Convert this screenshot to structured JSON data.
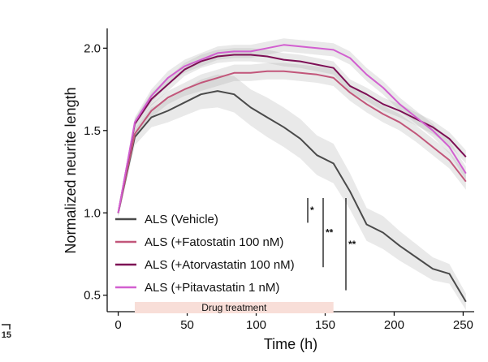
{
  "chart_data": {
    "type": "line",
    "xlabel": "Time (h)",
    "ylabel": "Normalized neurite length",
    "xlim": [
      -8,
      258
    ],
    "ylim": [
      0.4,
      2.12
    ],
    "xticks": [
      0,
      50,
      100,
      150,
      200,
      250
    ],
    "yticks": [
      0.5,
      1.0,
      1.5,
      2.0
    ],
    "xtick_labels": [
      "0",
      "50",
      "100",
      "150",
      "200",
      "250"
    ],
    "ytick_labels": [
      "0.5",
      "1.0",
      "1.5",
      "2.0"
    ],
    "x": [
      0,
      12,
      24,
      36,
      48,
      60,
      72,
      84,
      96,
      108,
      120,
      132,
      144,
      156,
      168,
      180,
      192,
      204,
      216,
      228,
      240,
      252
    ],
    "series": [
      {
        "name": "ALS (Vehicle)",
        "color": "#4a4a4a",
        "values": [
          1.0,
          1.46,
          1.58,
          1.62,
          1.67,
          1.72,
          1.74,
          1.72,
          1.64,
          1.58,
          1.52,
          1.45,
          1.35,
          1.3,
          1.13,
          0.93,
          0.88,
          0.8,
          0.73,
          0.66,
          0.63,
          0.46
        ],
        "band": [
          0.03,
          0.05,
          0.06,
          0.07,
          0.08,
          0.09,
          0.1,
          0.11,
          0.11,
          0.12,
          0.12,
          0.12,
          0.12,
          0.12,
          0.11,
          0.1,
          0.1,
          0.09,
          0.08,
          0.07,
          0.06,
          0.05
        ]
      },
      {
        "name": "ALS (+Fatostatin 100 nM)",
        "color": "#c2567a",
        "values": [
          1.0,
          1.48,
          1.62,
          1.7,
          1.75,
          1.79,
          1.82,
          1.85,
          1.85,
          1.86,
          1.86,
          1.85,
          1.84,
          1.82,
          1.73,
          1.66,
          1.6,
          1.55,
          1.48,
          1.4,
          1.32,
          1.19
        ],
        "band": [
          0.02,
          0.03,
          0.04,
          0.04,
          0.04,
          0.05,
          0.05,
          0.05,
          0.05,
          0.05,
          0.05,
          0.05,
          0.05,
          0.05,
          0.05,
          0.05,
          0.05,
          0.05,
          0.05,
          0.05,
          0.05,
          0.05
        ]
      },
      {
        "name": "ALS (+Atorvastatin 100 nM)",
        "color": "#7d0f55",
        "values": [
          1.0,
          1.54,
          1.69,
          1.78,
          1.87,
          1.92,
          1.95,
          1.96,
          1.96,
          1.95,
          1.93,
          1.92,
          1.9,
          1.88,
          1.77,
          1.72,
          1.66,
          1.62,
          1.57,
          1.52,
          1.45,
          1.34
        ],
        "band": [
          0.02,
          0.03,
          0.04,
          0.04,
          0.04,
          0.04,
          0.04,
          0.04,
          0.04,
          0.04,
          0.04,
          0.04,
          0.04,
          0.04,
          0.04,
          0.04,
          0.04,
          0.04,
          0.04,
          0.04,
          0.04,
          0.04
        ]
      },
      {
        "name": "ALS (+Pitavastatin 1 nM)",
        "color": "#d25fd0",
        "values": [
          1.0,
          1.55,
          1.71,
          1.82,
          1.89,
          1.93,
          1.97,
          1.98,
          1.98,
          2.0,
          2.02,
          2.01,
          2.0,
          1.99,
          1.94,
          1.84,
          1.76,
          1.66,
          1.58,
          1.5,
          1.4,
          1.24
        ],
        "band": [
          0.02,
          0.03,
          0.04,
          0.04,
          0.04,
          0.04,
          0.04,
          0.04,
          0.04,
          0.04,
          0.04,
          0.04,
          0.04,
          0.04,
          0.04,
          0.04,
          0.04,
          0.04,
          0.04,
          0.04,
          0.04,
          0.04
        ]
      }
    ],
    "legend_position": "bottom-left",
    "significance": [
      {
        "label": "*",
        "y_from": 0.94,
        "y_to": 1.09
      },
      {
        "label": "**",
        "y_from": 0.67,
        "y_to": 1.09
      },
      {
        "label": "**",
        "y_from": 0.53,
        "y_to": 1.09
      }
    ],
    "annotation": {
      "label": "Drug treatment",
      "x_start": 12,
      "x_end": 156,
      "color": "#f8ded8"
    }
  },
  "corner_label": "15"
}
